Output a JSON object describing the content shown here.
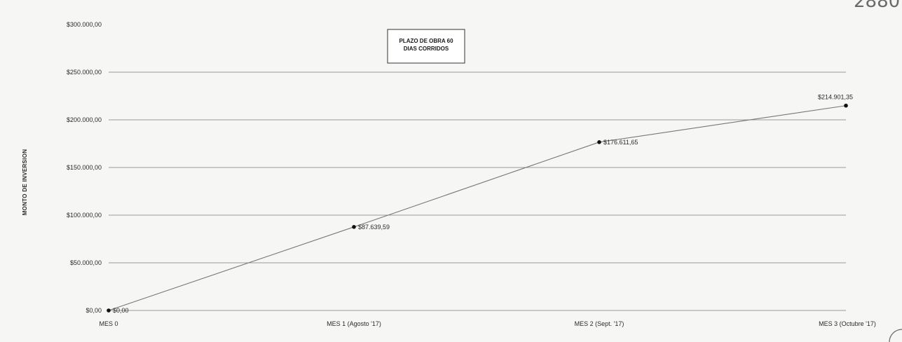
{
  "page_number_stamp": "2880",
  "chart_data": {
    "type": "line",
    "title": "",
    "xlabel": "",
    "ylabel": "MONTO DE INVERSION",
    "ylim": [
      0,
      300000
    ],
    "y_ticks": [
      0,
      50000,
      100000,
      150000,
      200000,
      250000,
      300000
    ],
    "y_tick_labels": [
      "$0,00",
      "$50.000,00",
      "$100.000,00",
      "$150.000,00",
      "$200.000,00",
      "$250.000,00",
      "$300.000,00"
    ],
    "categories": [
      "MES 0",
      "MES 1 (Agosto '17)",
      "MES 2 (Sept. '17)",
      "MES 3 (Octubre '17)"
    ],
    "series": [
      {
        "values": [
          0,
          87639.59,
          176611.65,
          214901.35
        ],
        "labels": [
          "$0,00",
          "$87.639,59",
          "$176.611,65",
          "$214.901,35"
        ]
      }
    ],
    "annotation": {
      "line1": "PLAZO DE OBRA 60",
      "line2": "DIAS CORRIDOS"
    },
    "grid": true,
    "legend": "none",
    "colors": {
      "line": "#777777",
      "marker": "#111111",
      "grid": "#9a9a9a"
    }
  }
}
